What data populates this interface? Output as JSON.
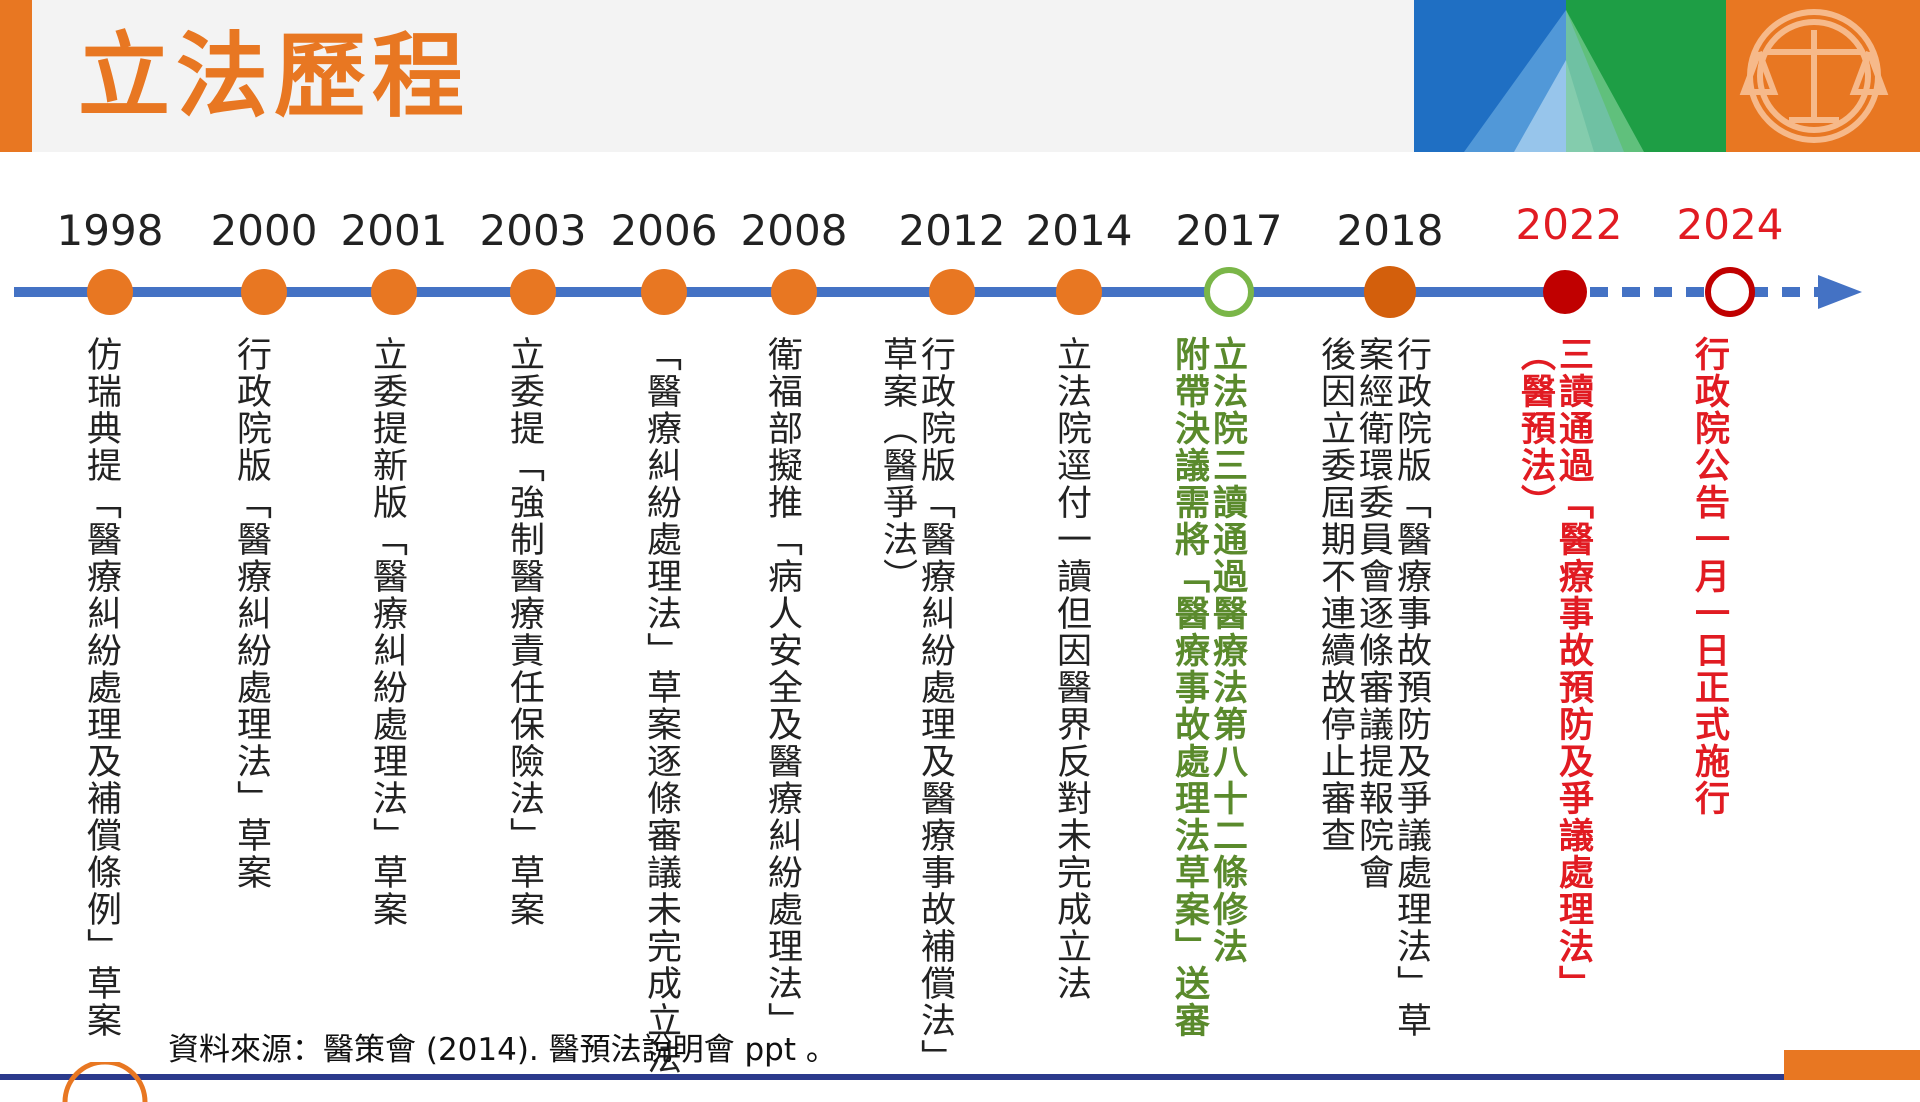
{
  "title": "立法歷程",
  "colors": {
    "accent_orange": "#e87722",
    "timeline_blue": "#4472c4",
    "highlight_green": "#5a8a2c",
    "highlight_red": "#e11b22",
    "dark_orange": "#d35f0c",
    "dark_red": "#c00000"
  },
  "timeline": {
    "events": [
      {
        "year": "1998",
        "text": "仿瑞典提「醫療糾紛處理及補償條例」草案",
        "year_color": "black",
        "marker": "orange"
      },
      {
        "year": "2000",
        "text": "行政院版「醫療糾紛處理法」草案",
        "year_color": "black",
        "marker": "orange"
      },
      {
        "year": "2001",
        "text": "立委提新版「醫療糾紛處理法」草案",
        "year_color": "black",
        "marker": "orange"
      },
      {
        "year": "2003",
        "text": "立委提「強制醫療責任保險法」草案",
        "year_color": "black",
        "marker": "orange"
      },
      {
        "year": "2006",
        "text": "「醫療糾紛處理法」草案逐條審議未完成立法",
        "year_color": "black",
        "marker": "orange"
      },
      {
        "year": "2008",
        "text": "衛福部擬推「病人安全及醫療糾紛處理法」",
        "year_color": "black",
        "marker": "orange"
      },
      {
        "year": "2012",
        "text": "行政院版「醫療糾紛處理及醫療事故補償法」\n草案（醫爭法）",
        "year_color": "black",
        "marker": "orange"
      },
      {
        "year": "2014",
        "text": "立法院逕付一讀但因醫界反對未完成立法",
        "year_color": "black",
        "marker": "orange"
      },
      {
        "year": "2017",
        "text": "立法院三讀通過醫療法第八十二條修法\n附帶決議需將「醫療事故處理法草案」送審",
        "year_color": "black",
        "marker": "hollow-green"
      },
      {
        "year": "2018",
        "text": "行政院版「醫療事故預防及爭議處理法」草\n案經衛環委員會逐條審議提報院會\n後因立委屆期不連續故停止審查",
        "year_color": "black",
        "marker": "dark-orange"
      },
      {
        "year": "2022",
        "text": "三讀通過「醫療事故預防及爭議處理法」\n（醫預法）",
        "year_color": "red",
        "marker": "dark-red"
      },
      {
        "year": "2024",
        "text": "行政院公告一月一日正式施行",
        "year_color": "red",
        "marker": "hollow-red"
      }
    ]
  },
  "source": "資料來源：醫策會 (2014). 醫預法說明會 ppt 。"
}
